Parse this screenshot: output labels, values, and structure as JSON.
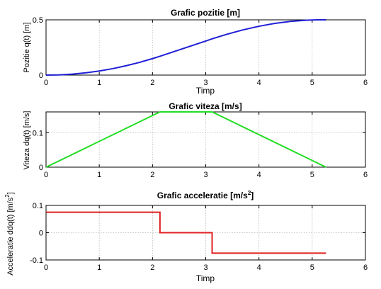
{
  "chart_data": [
    {
      "type": "line",
      "title": "Grafic pozitie [m]",
      "xlabel": "Timp",
      "ylabel": "Pozitie q(t) [m]",
      "xlim": [
        0,
        6
      ],
      "ylim": [
        0,
        0.5
      ],
      "xticks": [
        0,
        1,
        2,
        3,
        4,
        5,
        6
      ],
      "yticks": [
        0,
        0.5
      ],
      "ytick_labels": [
        "0",
        "0.5"
      ],
      "grid": true,
      "series": [
        {
          "color": "#1f1fd6",
          "x": [
            0,
            0.25,
            0.5,
            0.75,
            1.0,
            1.25,
            1.5,
            1.75,
            2.0,
            2.14,
            2.4,
            2.7,
            3.0,
            3.12,
            3.4,
            3.7,
            4.0,
            4.3,
            4.6,
            4.9,
            5.1,
            5.26
          ],
          "y": [
            0,
            0.002,
            0.009,
            0.021,
            0.037,
            0.058,
            0.084,
            0.114,
            0.149,
            0.17,
            0.212,
            0.26,
            0.308,
            0.328,
            0.37,
            0.409,
            0.442,
            0.468,
            0.486,
            0.497,
            0.5,
            0.5
          ]
        }
      ]
    },
    {
      "type": "line",
      "title": "Grafic viteza [m/s]",
      "xlabel": "",
      "ylabel": "Viteza dq(t) [m/s]",
      "xlim": [
        0,
        6
      ],
      "ylim": [
        0,
        0.16
      ],
      "xticks": [
        0,
        1,
        2,
        3,
        4,
        5,
        6
      ],
      "yticks": [
        0,
        0.1
      ],
      "ytick_labels": [
        "0",
        "0.1"
      ],
      "grid": true,
      "series": [
        {
          "color": "#22dd22",
          "x": [
            0,
            2.14,
            3.12,
            5.26
          ],
          "y": [
            0,
            0.16,
            0.16,
            0
          ]
        }
      ]
    },
    {
      "type": "line",
      "title": "Grafic  acceleratie  [m/s",
      "title_sup": "2",
      "title_end": "]",
      "xlabel": "Timp",
      "ylabel": "Acceleratie  ddq(t)  [m/s",
      "ylabel_sup": "2",
      "ylabel_end": "]",
      "xlim": [
        0,
        6
      ],
      "ylim": [
        -0.1,
        0.1
      ],
      "xticks": [
        0,
        1,
        2,
        3,
        4,
        5,
        6
      ],
      "yticks": [
        -0.1,
        0,
        0.1
      ],
      "ytick_labels": [
        "-0.1",
        "0",
        "0.1"
      ],
      "grid": true,
      "series": [
        {
          "color": "#e02020",
          "x": [
            0,
            2.14,
            2.14,
            3.12,
            3.12,
            5.26
          ],
          "y": [
            0.075,
            0.075,
            0,
            0,
            -0.075,
            -0.075
          ]
        }
      ]
    }
  ]
}
